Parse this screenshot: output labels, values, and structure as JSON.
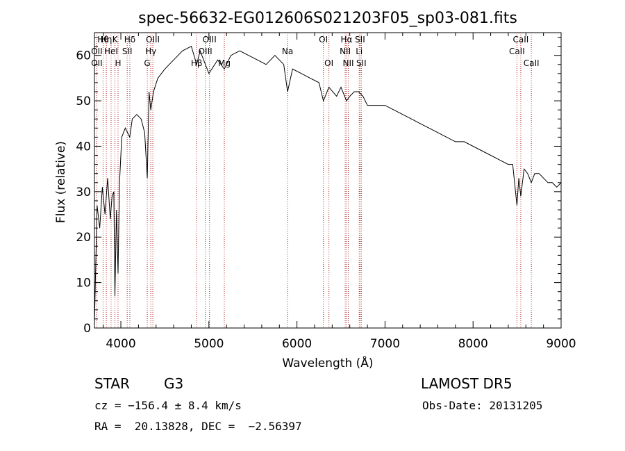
{
  "chart_data": {
    "type": "line",
    "title": "spec-56632-EG012606S021203F05_sp03-081.fits",
    "xlabel": "Wavelength (Å)",
    "ylabel": "Flux (relative)",
    "xlim": [
      3700,
      9000
    ],
    "ylim": [
      0,
      65
    ],
    "xticks": [
      4000,
      5000,
      6000,
      7000,
      8000,
      9000
    ],
    "yticks": [
      0,
      10,
      20,
      30,
      40,
      50,
      60
    ],
    "grid": false,
    "series": [
      {
        "color": "#000000",
        "x": [
          3700,
          3730,
          3760,
          3790,
          3820,
          3850,
          3880,
          3900,
          3920,
          3933,
          3950,
          3968,
          3985,
          4010,
          4050,
          4101,
          4130,
          4180,
          4230,
          4270,
          4300,
          4320,
          4340,
          4370,
          4420,
          4500,
          4600,
          4700,
          4800,
          4861,
          4900,
          5000,
          5100,
          5175,
          5250,
          5350,
          5450,
          5550,
          5650,
          5750,
          5850,
          5893,
          5950,
          6050,
          6150,
          6250,
          6300,
          6363,
          6450,
          6500,
          6563,
          6600,
          6650,
          6700,
          6750,
          6800,
          6900,
          7000,
          7100,
          7200,
          7300,
          7400,
          7500,
          7600,
          7700,
          7800,
          7900,
          8000,
          8100,
          8200,
          8300,
          8400,
          8450,
          8498,
          8520,
          8542,
          8580,
          8620,
          8662,
          8700,
          8750,
          8800,
          8850,
          8900,
          8950,
          9000
        ],
        "y": [
          1,
          27,
          22,
          31,
          25,
          33,
          24,
          29,
          30,
          7,
          26,
          12,
          32,
          42,
          44,
          42,
          46,
          47,
          46,
          43,
          33,
          52,
          48,
          52,
          55,
          57,
          59,
          61,
          62,
          58,
          61,
          56,
          59,
          57,
          60,
          61,
          60,
          59,
          58,
          60,
          58,
          52,
          57,
          56,
          55,
          54,
          50,
          53,
          51,
          53,
          50,
          51,
          52,
          52,
          51,
          49,
          49,
          49,
          48,
          47,
          46,
          45,
          44,
          43,
          42,
          41,
          41,
          40,
          39,
          38,
          37,
          36,
          36,
          27,
          33,
          29,
          35,
          34,
          32,
          34,
          34,
          33,
          32,
          32,
          31,
          32
        ]
      }
    ],
    "lines": [
      {
        "wl": 3727,
        "row": 1,
        "label": "OII"
      },
      {
        "wl": 3727,
        "row": 2,
        "label": "OII"
      },
      {
        "wl": 3798,
        "row": 0,
        "label": "Hθ"
      },
      {
        "wl": 3835,
        "row": 0,
        "label": "Hη"
      },
      {
        "wl": 3889,
        "row": 1,
        "label": "HeI"
      },
      {
        "wl": 3933,
        "row": 0,
        "label": "K"
      },
      {
        "wl": 3968,
        "row": 2,
        "label": "H"
      },
      {
        "wl": 4072,
        "row": 1,
        "label": "SII"
      },
      {
        "wl": 4102,
        "row": 0,
        "label": "Hδ"
      },
      {
        "wl": 4300,
        "row": 2,
        "label": "G"
      },
      {
        "wl": 4340,
        "row": 1,
        "label": "Hγ"
      },
      {
        "wl": 4363,
        "row": 0,
        "label": "OIII"
      },
      {
        "wl": 4861,
        "row": 2,
        "label": "Hβ"
      },
      {
        "wl": 4959,
        "row": 1,
        "label": "OIII"
      },
      {
        "wl": 5007,
        "row": 0,
        "label": "OIII"
      },
      {
        "wl": 5175,
        "row": 2,
        "label": "Mg"
      },
      {
        "wl": 5893,
        "row": 1,
        "label": "Na"
      },
      {
        "wl": 6300,
        "row": 0,
        "label": "OI"
      },
      {
        "wl": 6363,
        "row": 2,
        "label": "OI"
      },
      {
        "wl": 6548,
        "row": 1,
        "label": "NII"
      },
      {
        "wl": 6563,
        "row": 0,
        "label": "Hα"
      },
      {
        "wl": 6583,
        "row": 2,
        "label": "NII"
      },
      {
        "wl": 6707,
        "row": 1,
        "label": "Li"
      },
      {
        "wl": 6716,
        "row": 0,
        "label": "SII"
      },
      {
        "wl": 6731,
        "row": 2,
        "label": "SII"
      },
      {
        "wl": 8498,
        "row": 1,
        "label": "CaII"
      },
      {
        "wl": 8542,
        "row": 0,
        "label": "CaII"
      },
      {
        "wl": 8662,
        "row": 2,
        "label": "CaII"
      }
    ]
  },
  "info": {
    "object_class": "STAR",
    "subclass": "G3",
    "survey": "LAMOST DR5",
    "redshift": "cz = −156.4 ± 8.4 km/s",
    "obs_date": "Obs-Date: 20131205",
    "coords": "RA =  20.13828, DEC =  −2.56397"
  }
}
